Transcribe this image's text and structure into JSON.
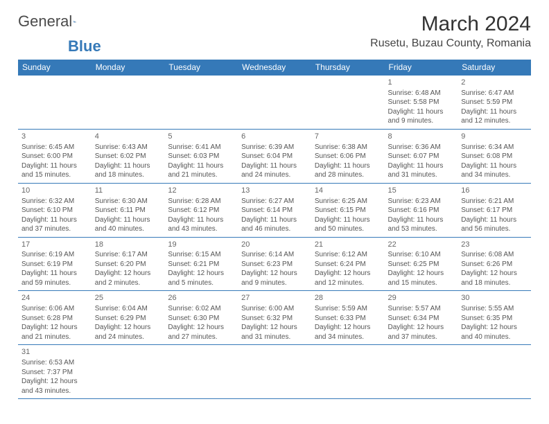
{
  "logo": {
    "text1": "General",
    "text2": "Blue"
  },
  "title": "March 2024",
  "location": "Rusetu, Buzau County, Romania",
  "colors": {
    "header_bg": "#3579b8",
    "header_text": "#ffffff",
    "cell_border": "#3579b8",
    "text": "#555555",
    "title_text": "#333333"
  },
  "weekdays": [
    "Sunday",
    "Monday",
    "Tuesday",
    "Wednesday",
    "Thursday",
    "Friday",
    "Saturday"
  ],
  "weeks": [
    [
      null,
      null,
      null,
      null,
      null,
      {
        "n": "1",
        "sr": "Sunrise: 6:48 AM",
        "ss": "Sunset: 5:58 PM",
        "d1": "Daylight: 11 hours",
        "d2": "and 9 minutes."
      },
      {
        "n": "2",
        "sr": "Sunrise: 6:47 AM",
        "ss": "Sunset: 5:59 PM",
        "d1": "Daylight: 11 hours",
        "d2": "and 12 minutes."
      }
    ],
    [
      {
        "n": "3",
        "sr": "Sunrise: 6:45 AM",
        "ss": "Sunset: 6:00 PM",
        "d1": "Daylight: 11 hours",
        "d2": "and 15 minutes."
      },
      {
        "n": "4",
        "sr": "Sunrise: 6:43 AM",
        "ss": "Sunset: 6:02 PM",
        "d1": "Daylight: 11 hours",
        "d2": "and 18 minutes."
      },
      {
        "n": "5",
        "sr": "Sunrise: 6:41 AM",
        "ss": "Sunset: 6:03 PM",
        "d1": "Daylight: 11 hours",
        "d2": "and 21 minutes."
      },
      {
        "n": "6",
        "sr": "Sunrise: 6:39 AM",
        "ss": "Sunset: 6:04 PM",
        "d1": "Daylight: 11 hours",
        "d2": "and 24 minutes."
      },
      {
        "n": "7",
        "sr": "Sunrise: 6:38 AM",
        "ss": "Sunset: 6:06 PM",
        "d1": "Daylight: 11 hours",
        "d2": "and 28 minutes."
      },
      {
        "n": "8",
        "sr": "Sunrise: 6:36 AM",
        "ss": "Sunset: 6:07 PM",
        "d1": "Daylight: 11 hours",
        "d2": "and 31 minutes."
      },
      {
        "n": "9",
        "sr": "Sunrise: 6:34 AM",
        "ss": "Sunset: 6:08 PM",
        "d1": "Daylight: 11 hours",
        "d2": "and 34 minutes."
      }
    ],
    [
      {
        "n": "10",
        "sr": "Sunrise: 6:32 AM",
        "ss": "Sunset: 6:10 PM",
        "d1": "Daylight: 11 hours",
        "d2": "and 37 minutes."
      },
      {
        "n": "11",
        "sr": "Sunrise: 6:30 AM",
        "ss": "Sunset: 6:11 PM",
        "d1": "Daylight: 11 hours",
        "d2": "and 40 minutes."
      },
      {
        "n": "12",
        "sr": "Sunrise: 6:28 AM",
        "ss": "Sunset: 6:12 PM",
        "d1": "Daylight: 11 hours",
        "d2": "and 43 minutes."
      },
      {
        "n": "13",
        "sr": "Sunrise: 6:27 AM",
        "ss": "Sunset: 6:14 PM",
        "d1": "Daylight: 11 hours",
        "d2": "and 46 minutes."
      },
      {
        "n": "14",
        "sr": "Sunrise: 6:25 AM",
        "ss": "Sunset: 6:15 PM",
        "d1": "Daylight: 11 hours",
        "d2": "and 50 minutes."
      },
      {
        "n": "15",
        "sr": "Sunrise: 6:23 AM",
        "ss": "Sunset: 6:16 PM",
        "d1": "Daylight: 11 hours",
        "d2": "and 53 minutes."
      },
      {
        "n": "16",
        "sr": "Sunrise: 6:21 AM",
        "ss": "Sunset: 6:17 PM",
        "d1": "Daylight: 11 hours",
        "d2": "and 56 minutes."
      }
    ],
    [
      {
        "n": "17",
        "sr": "Sunrise: 6:19 AM",
        "ss": "Sunset: 6:19 PM",
        "d1": "Daylight: 11 hours",
        "d2": "and 59 minutes."
      },
      {
        "n": "18",
        "sr": "Sunrise: 6:17 AM",
        "ss": "Sunset: 6:20 PM",
        "d1": "Daylight: 12 hours",
        "d2": "and 2 minutes."
      },
      {
        "n": "19",
        "sr": "Sunrise: 6:15 AM",
        "ss": "Sunset: 6:21 PM",
        "d1": "Daylight: 12 hours",
        "d2": "and 5 minutes."
      },
      {
        "n": "20",
        "sr": "Sunrise: 6:14 AM",
        "ss": "Sunset: 6:23 PM",
        "d1": "Daylight: 12 hours",
        "d2": "and 9 minutes."
      },
      {
        "n": "21",
        "sr": "Sunrise: 6:12 AM",
        "ss": "Sunset: 6:24 PM",
        "d1": "Daylight: 12 hours",
        "d2": "and 12 minutes."
      },
      {
        "n": "22",
        "sr": "Sunrise: 6:10 AM",
        "ss": "Sunset: 6:25 PM",
        "d1": "Daylight: 12 hours",
        "d2": "and 15 minutes."
      },
      {
        "n": "23",
        "sr": "Sunrise: 6:08 AM",
        "ss": "Sunset: 6:26 PM",
        "d1": "Daylight: 12 hours",
        "d2": "and 18 minutes."
      }
    ],
    [
      {
        "n": "24",
        "sr": "Sunrise: 6:06 AM",
        "ss": "Sunset: 6:28 PM",
        "d1": "Daylight: 12 hours",
        "d2": "and 21 minutes."
      },
      {
        "n": "25",
        "sr": "Sunrise: 6:04 AM",
        "ss": "Sunset: 6:29 PM",
        "d1": "Daylight: 12 hours",
        "d2": "and 24 minutes."
      },
      {
        "n": "26",
        "sr": "Sunrise: 6:02 AM",
        "ss": "Sunset: 6:30 PM",
        "d1": "Daylight: 12 hours",
        "d2": "and 27 minutes."
      },
      {
        "n": "27",
        "sr": "Sunrise: 6:00 AM",
        "ss": "Sunset: 6:32 PM",
        "d1": "Daylight: 12 hours",
        "d2": "and 31 minutes."
      },
      {
        "n": "28",
        "sr": "Sunrise: 5:59 AM",
        "ss": "Sunset: 6:33 PM",
        "d1": "Daylight: 12 hours",
        "d2": "and 34 minutes."
      },
      {
        "n": "29",
        "sr": "Sunrise: 5:57 AM",
        "ss": "Sunset: 6:34 PM",
        "d1": "Daylight: 12 hours",
        "d2": "and 37 minutes."
      },
      {
        "n": "30",
        "sr": "Sunrise: 5:55 AM",
        "ss": "Sunset: 6:35 PM",
        "d1": "Daylight: 12 hours",
        "d2": "and 40 minutes."
      }
    ],
    [
      {
        "n": "31",
        "sr": "Sunrise: 6:53 AM",
        "ss": "Sunset: 7:37 PM",
        "d1": "Daylight: 12 hours",
        "d2": "and 43 minutes."
      },
      null,
      null,
      null,
      null,
      null,
      null
    ]
  ]
}
